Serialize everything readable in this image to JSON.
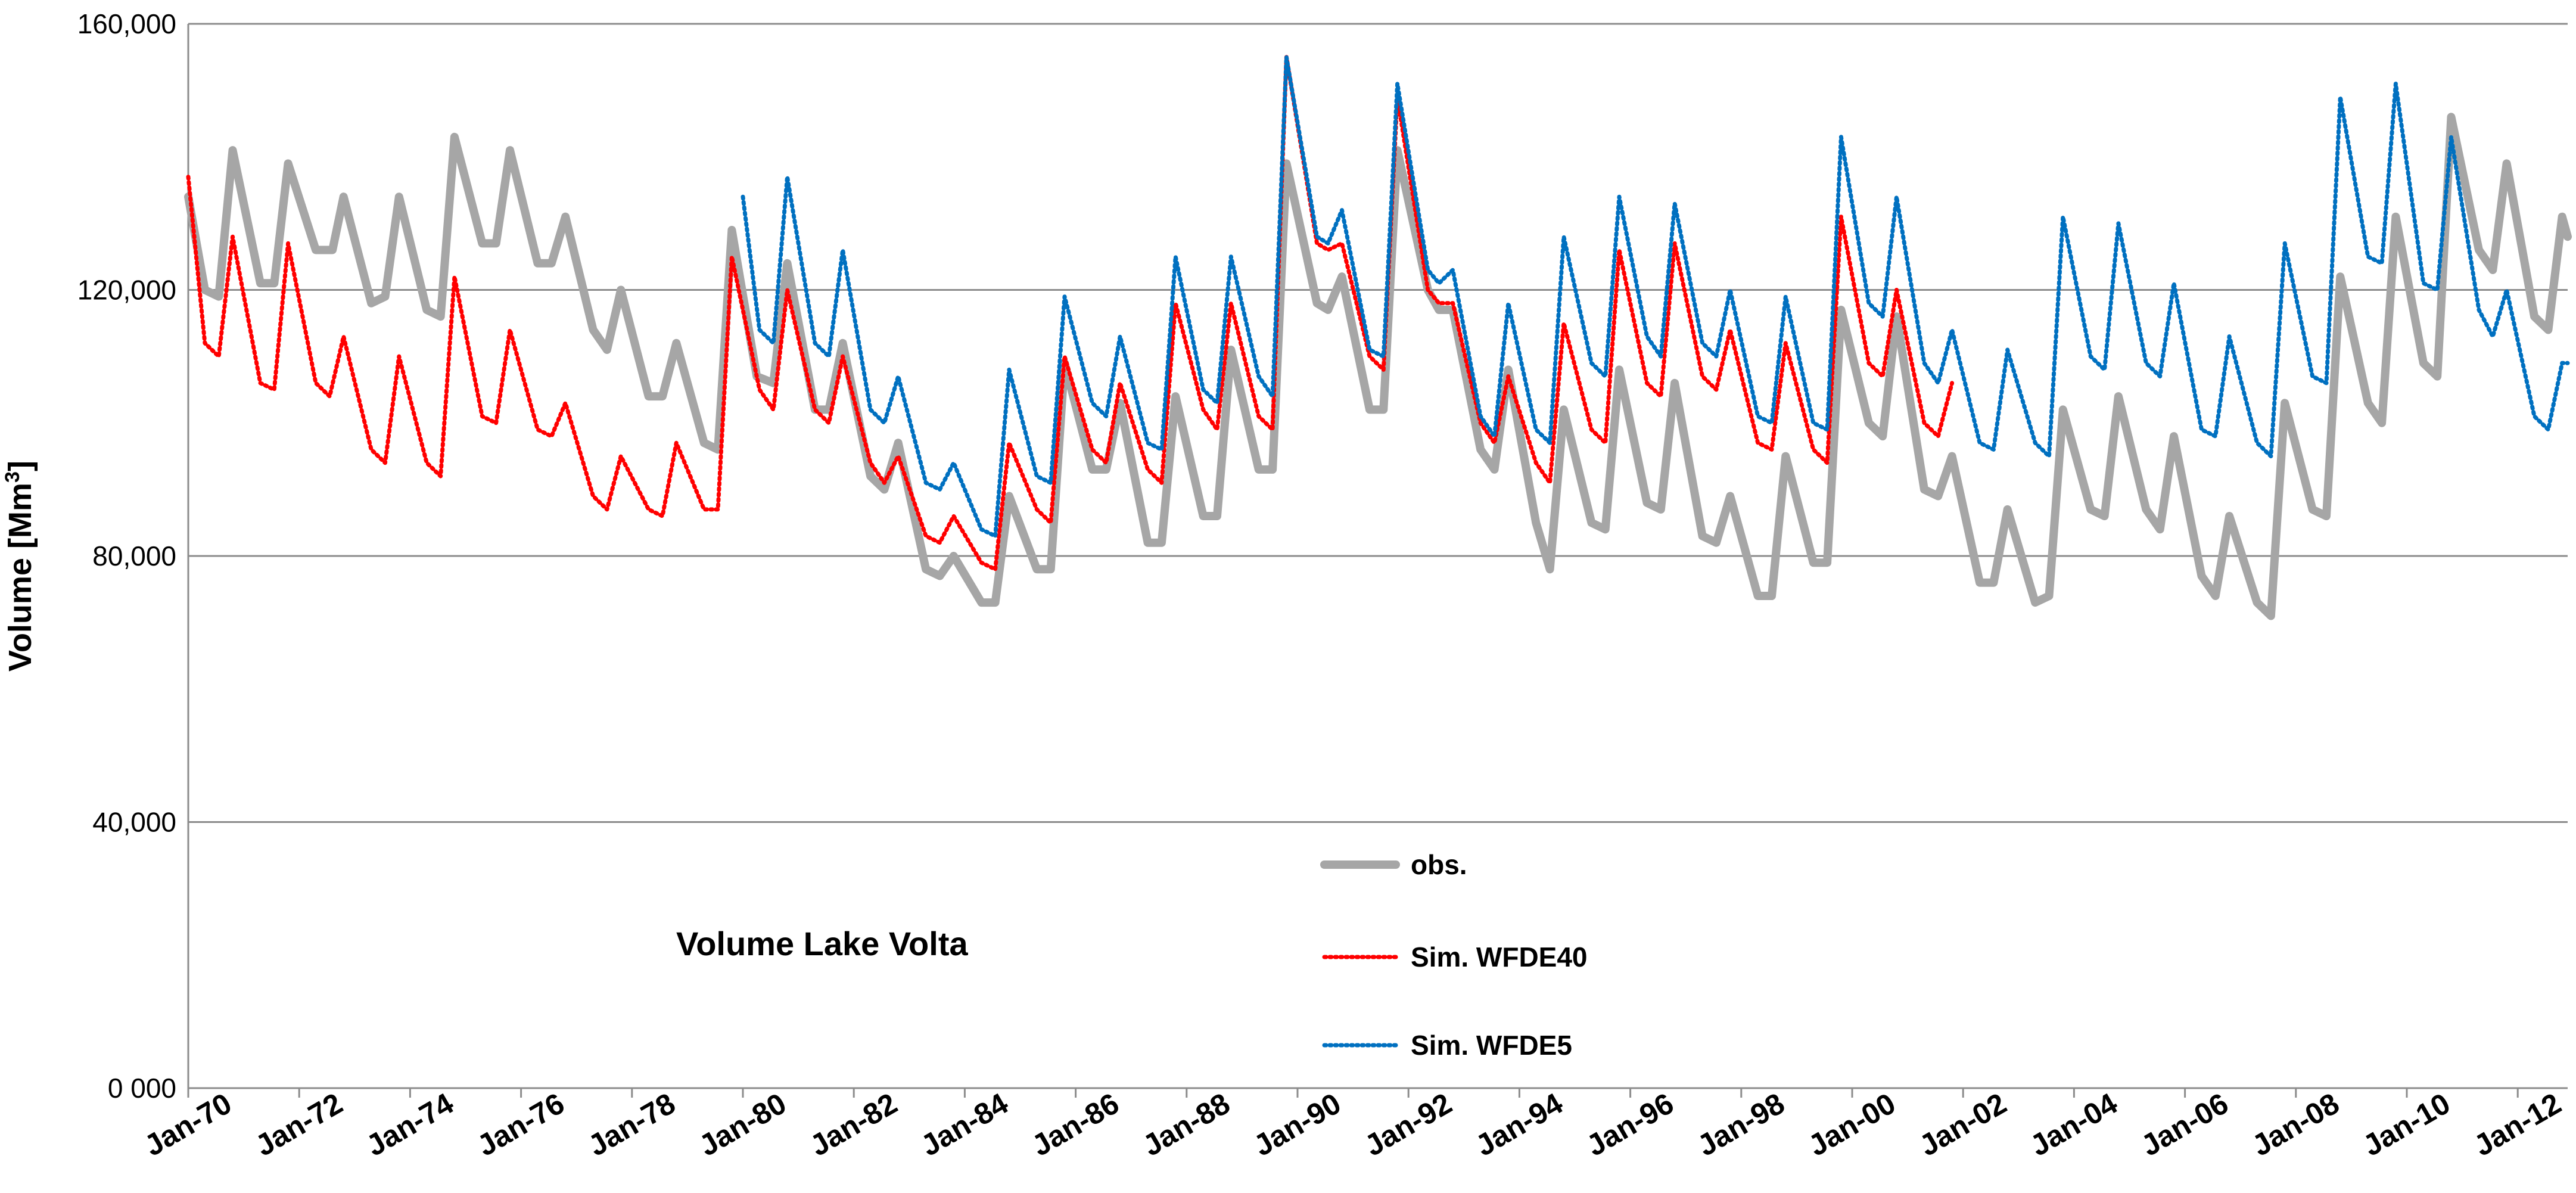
{
  "chart_data": {
    "type": "line",
    "title": "Volume Lake Volta",
    "xlabel": "",
    "ylabel": "Volume [Mm",
    "ylabel_sup": "3",
    "ylabel_close": "]",
    "ylim": [
      0,
      160000
    ],
    "xlim": [
      1970.0,
      2012.9
    ],
    "grid": true,
    "legend_position": "center-bottom",
    "y_ticks": [
      {
        "value": 0,
        "label": "0 000"
      },
      {
        "value": 40000,
        "label": "40,000"
      },
      {
        "value": 80000,
        "label": "80,000"
      },
      {
        "value": 120000,
        "label": "120,000"
      },
      {
        "value": 160000,
        "label": "160,000"
      }
    ],
    "x_ticks": [
      {
        "value": 1970,
        "label": "Jan-70"
      },
      {
        "value": 1972,
        "label": "Jan-72"
      },
      {
        "value": 1974,
        "label": "Jan-74"
      },
      {
        "value": 1976,
        "label": "Jan-76"
      },
      {
        "value": 1978,
        "label": "Jan-78"
      },
      {
        "value": 1980,
        "label": "Jan-80"
      },
      {
        "value": 1982,
        "label": "Jan-82"
      },
      {
        "value": 1984,
        "label": "Jan-84"
      },
      {
        "value": 1986,
        "label": "Jan-86"
      },
      {
        "value": 1988,
        "label": "Jan-88"
      },
      {
        "value": 1990,
        "label": "Jan-90"
      },
      {
        "value": 1992,
        "label": "Jan-92"
      },
      {
        "value": 1994,
        "label": "Jan-94"
      },
      {
        "value": 1996,
        "label": "Jan-96"
      },
      {
        "value": 1998,
        "label": "Jan-98"
      },
      {
        "value": 2000,
        "label": "Jan-00"
      },
      {
        "value": 2002,
        "label": "Jan-02"
      },
      {
        "value": 2004,
        "label": "Jan-04"
      },
      {
        "value": 2006,
        "label": "Jan-06"
      },
      {
        "value": 2008,
        "label": "Jan-08"
      },
      {
        "value": 2010,
        "label": "Jan-10"
      },
      {
        "value": 2012,
        "label": "Jan-12"
      }
    ],
    "series": [
      {
        "name": "obs.",
        "color": "#a6a6a6",
        "style": "solid",
        "x": [
          1970.0,
          1970.3,
          1970.55,
          1970.8,
          1971.3,
          1971.55,
          1971.8,
          1972.3,
          1972.6,
          1972.8,
          1973.3,
          1973.55,
          1973.8,
          1974.3,
          1974.55,
          1974.8,
          1975.3,
          1975.55,
          1975.8,
          1976.3,
          1976.55,
          1976.8,
          1977.3,
          1977.55,
          1977.8,
          1978.3,
          1978.55,
          1978.8,
          1979.3,
          1979.55,
          1979.8,
          1980.25,
          1980.55,
          1980.8,
          1981.3,
          1981.55,
          1981.8,
          1982.3,
          1982.55,
          1982.8,
          1983.3,
          1983.55,
          1983.8,
          1984.3,
          1984.55,
          1984.8,
          1985.3,
          1985.55,
          1985.8,
          1986.3,
          1986.55,
          1986.8,
          1987.3,
          1987.55,
          1987.8,
          1988.3,
          1988.55,
          1988.8,
          1989.3,
          1989.55,
          1989.8,
          1990.35,
          1990.55,
          1990.8,
          1991.3,
          1991.55,
          1991.8,
          1992.35,
          1992.55,
          1992.8,
          1993.3,
          1993.55,
          1993.8,
          1994.3,
          1994.55,
          1994.8,
          1995.3,
          1995.55,
          1995.8,
          1996.3,
          1996.55,
          1996.8,
          1997.3,
          1997.55,
          1997.8,
          1998.3,
          1998.55,
          1998.8,
          1999.3,
          1999.55,
          1999.8,
          2000.3,
          2000.55,
          2000.8,
          2001.3,
          2001.55,
          2001.8,
          2002.3,
          2002.55,
          2002.8,
          2003.3,
          2003.55,
          2003.8,
          2004.3,
          2004.55,
          2004.8,
          2005.3,
          2005.55,
          2005.8,
          2006.3,
          2006.55,
          2006.8,
          2007.3,
          2007.55,
          2007.8,
          2008.3,
          2008.55,
          2008.8,
          2009.3,
          2009.55,
          2009.8,
          2010.3,
          2010.55,
          2010.8,
          2011.3,
          2011.55,
          2011.8,
          2012.3,
          2012.55,
          2012.8,
          2012.9
        ],
        "values": [
          134000,
          120000,
          119000,
          141000,
          121000,
          121000,
          139000,
          126000,
          126000,
          134000,
          118000,
          119000,
          134000,
          117000,
          116000,
          143000,
          127000,
          127000,
          141000,
          124000,
          124000,
          131000,
          114000,
          111000,
          120000,
          104000,
          104000,
          112000,
          97000,
          96000,
          129000,
          107000,
          106000,
          124000,
          102000,
          102000,
          112000,
          92000,
          90000,
          97000,
          78000,
          77000,
          80000,
          73000,
          73000,
          89000,
          78000,
          78000,
          109000,
          93000,
          93000,
          103000,
          82000,
          82000,
          104000,
          86000,
          86000,
          111000,
          93000,
          93000,
          139000,
          118000,
          117000,
          122000,
          102000,
          102000,
          141000,
          120000,
          117000,
          117000,
          96000,
          93000,
          108000,
          85000,
          78000,
          102000,
          85000,
          84000,
          108000,
          88000,
          87000,
          106000,
          83000,
          82000,
          89000,
          74000,
          74000,
          95000,
          79000,
          79000,
          117000,
          100000,
          98000,
          116000,
          90000,
          89000,
          95000,
          76000,
          76000,
          87000,
          73000,
          74000,
          102000,
          87000,
          86000,
          104000,
          87000,
          84000,
          98000,
          77000,
          74000,
          86000,
          73000,
          71000,
          103000,
          87000,
          86000,
          122000,
          103000,
          100000,
          131000,
          109000,
          107000,
          146000,
          126000,
          123000,
          139000,
          116000,
          114000,
          131000,
          128000
        ]
      },
      {
        "name": "Sim. WFDE40",
        "color": "#ff0000",
        "style": "dotted",
        "x": [
          1970.0,
          1970.3,
          1970.55,
          1970.8,
          1971.3,
          1971.55,
          1971.8,
          1972.3,
          1972.55,
          1972.8,
          1973.3,
          1973.55,
          1973.8,
          1974.3,
          1974.55,
          1974.8,
          1975.3,
          1975.55,
          1975.8,
          1976.3,
          1976.55,
          1976.8,
          1977.3,
          1977.55,
          1977.8,
          1978.3,
          1978.55,
          1978.8,
          1979.3,
          1979.55,
          1979.8,
          1980.3,
          1980.55,
          1980.8,
          1981.3,
          1981.55,
          1981.8,
          1982.3,
          1982.55,
          1982.8,
          1983.3,
          1983.55,
          1983.8,
          1984.3,
          1984.55,
          1984.8,
          1985.3,
          1985.55,
          1985.8,
          1986.3,
          1986.55,
          1986.8,
          1987.3,
          1987.55,
          1987.8,
          1988.3,
          1988.55,
          1988.8,
          1989.3,
          1989.55,
          1989.8,
          1990.35,
          1990.55,
          1990.8,
          1991.3,
          1991.55,
          1991.8,
          1992.35,
          1992.55,
          1992.8,
          1993.3,
          1993.55,
          1993.8,
          1994.3,
          1994.55,
          1994.8,
          1995.3,
          1995.55,
          1995.8,
          1996.3,
          1996.55,
          1996.8,
          1997.3,
          1997.55,
          1997.8,
          1998.3,
          1998.55,
          1998.8,
          1999.3,
          1999.55,
          1999.8,
          2000.3,
          2000.55,
          2000.8,
          2001.3,
          2001.55,
          2001.8
        ],
        "values": [
          137000,
          112000,
          110000,
          128000,
          106000,
          105000,
          127000,
          106000,
          104000,
          113000,
          96000,
          94000,
          110000,
          94000,
          92000,
          122000,
          101000,
          100000,
          114000,
          99000,
          98000,
          103000,
          89000,
          87000,
          95000,
          87000,
          86000,
          97000,
          87000,
          87000,
          125000,
          105000,
          102000,
          120000,
          102000,
          100000,
          110000,
          94000,
          91000,
          95000,
          83000,
          82000,
          86000,
          79000,
          78000,
          97000,
          87000,
          85000,
          110000,
          96000,
          94000,
          106000,
          93000,
          91000,
          118000,
          102000,
          99000,
          118000,
          101000,
          99000,
          155000,
          127000,
          126000,
          127000,
          110000,
          108000,
          149000,
          120000,
          118000,
          118000,
          100000,
          97000,
          107000,
          94000,
          91000,
          115000,
          99000,
          97000,
          126000,
          106000,
          104000,
          127000,
          107000,
          105000,
          114000,
          97000,
          96000,
          112000,
          96000,
          94000,
          131000,
          109000,
          107000,
          120000,
          100000,
          98000,
          106000
        ]
      },
      {
        "name": "Sim. WFDE5",
        "color": "#0070c0",
        "style": "dotted",
        "x": [
          1980.0,
          1980.3,
          1980.55,
          1980.8,
          1981.3,
          1981.55,
          1981.8,
          1982.3,
          1982.55,
          1982.8,
          1983.3,
          1983.55,
          1983.8,
          1984.3,
          1984.55,
          1984.8,
          1985.3,
          1985.55,
          1985.8,
          1986.3,
          1986.55,
          1986.8,
          1987.3,
          1987.55,
          1987.8,
          1988.3,
          1988.55,
          1988.8,
          1989.3,
          1989.55,
          1989.8,
          1990.35,
          1990.55,
          1990.8,
          1991.3,
          1991.55,
          1991.8,
          1992.35,
          1992.55,
          1992.8,
          1993.3,
          1993.55,
          1993.8,
          1994.3,
          1994.55,
          1994.8,
          1995.3,
          1995.55,
          1995.8,
          1996.3,
          1996.55,
          1996.8,
          1997.3,
          1997.55,
          1997.8,
          1998.3,
          1998.55,
          1998.8,
          1999.3,
          1999.55,
          1999.8,
          2000.3,
          2000.55,
          2000.8,
          2001.3,
          2001.55,
          2001.8,
          2002.3,
          2002.55,
          2002.8,
          2003.3,
          2003.55,
          2003.8,
          2004.3,
          2004.55,
          2004.8,
          2005.3,
          2005.55,
          2005.8,
          2006.3,
          2006.55,
          2006.8,
          2007.3,
          2007.55,
          2007.8,
          2008.3,
          2008.55,
          2008.8,
          2009.3,
          2009.55,
          2009.8,
          2010.3,
          2010.55,
          2010.8,
          2011.3,
          2011.55,
          2011.8,
          2012.3,
          2012.55,
          2012.8,
          2012.9
        ],
        "values": [
          134000,
          114000,
          112000,
          137000,
          112000,
          110000,
          126000,
          102000,
          100000,
          107000,
          91000,
          90000,
          94000,
          84000,
          83000,
          108000,
          92000,
          91000,
          119000,
          103000,
          101000,
          113000,
          97000,
          96000,
          125000,
          105000,
          103000,
          125000,
          107000,
          104000,
          155000,
          128000,
          127000,
          132000,
          111000,
          110000,
          151000,
          123000,
          121000,
          123000,
          101000,
          98000,
          118000,
          99000,
          97000,
          128000,
          109000,
          107000,
          134000,
          113000,
          110000,
          133000,
          112000,
          110000,
          120000,
          101000,
          100000,
          119000,
          100000,
          99000,
          143000,
          118000,
          116000,
          134000,
          109000,
          106000,
          114000,
          97000,
          96000,
          111000,
          97000,
          95000,
          131000,
          110000,
          108000,
          130000,
          109000,
          107000,
          121000,
          99000,
          98000,
          113000,
          97000,
          95000,
          127000,
          107000,
          106000,
          149000,
          125000,
          124000,
          151000,
          121000,
          120000,
          143000,
          117000,
          113000,
          120000,
          101000,
          99000,
          109000,
          109000
        ]
      }
    ]
  }
}
